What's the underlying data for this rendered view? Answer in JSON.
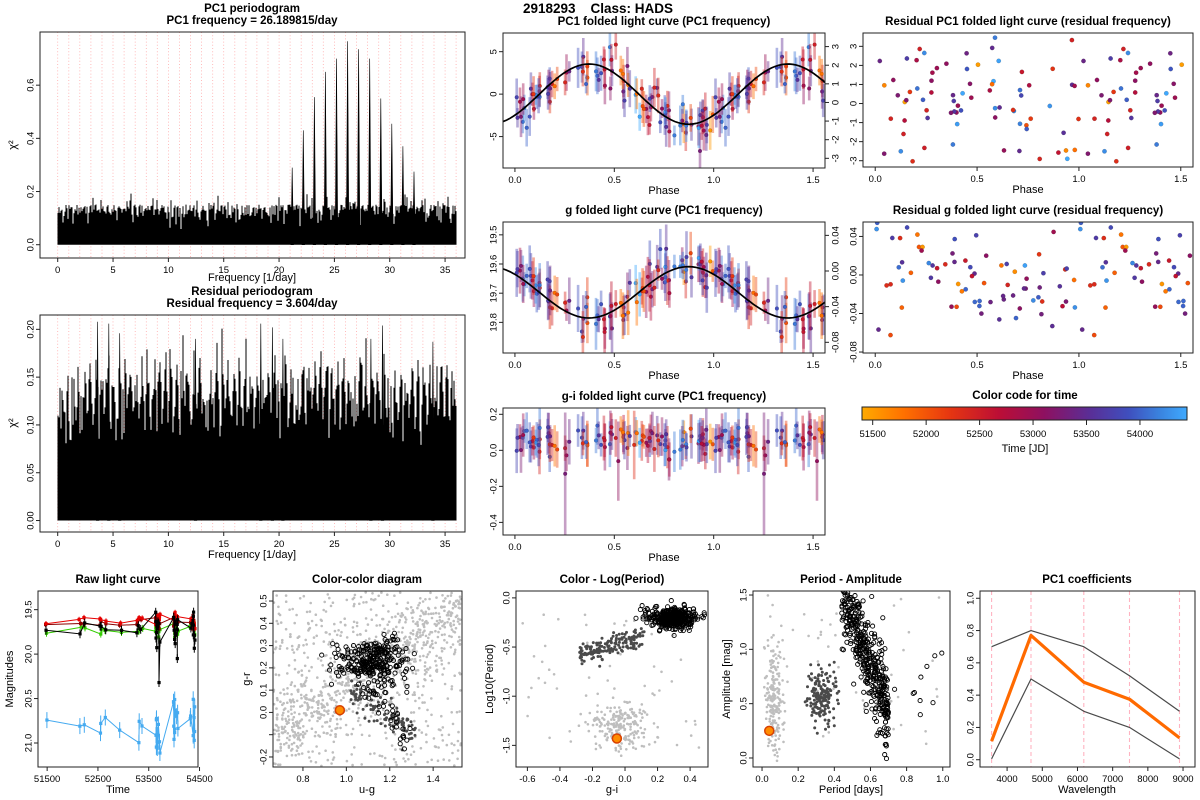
{
  "header": {
    "title": "2918293    Class: HADS"
  },
  "colors": {
    "background": "#FFFFFF",
    "periodogram_grid": "#FFAAAA",
    "coef_grid": "#FFB3C1",
    "fit_line": "#000000",
    "bg_marker": "#BEBEBE",
    "dark_marker": "#4A4A4A",
    "open_marker": "#000000",
    "highlight_fill": "#FF8C00",
    "highlight_stroke": "#D84000"
  },
  "chart_data": [
    {
      "type": "periodogram",
      "title": "PC1 periodogram",
      "subtitle": "PC1 frequency = 26.189815/day",
      "xlabel": "Frequency [1/day]",
      "ylabel": "χ²",
      "xlim": [
        -1.6,
        36.8
      ],
      "ylim": [
        -0.05,
        0.8
      ],
      "f_range": [
        0,
        36
      ],
      "grid_step": 1,
      "xticks": [
        0,
        5,
        10,
        15,
        20,
        25,
        30,
        35
      ],
      "xdec": 0,
      "yticks": [
        0.0,
        0.2,
        0.4,
        0.6
      ],
      "ydec": 1,
      "noise_base": 0.035,
      "noise_amp": 0.115,
      "noise_pow": 0.5,
      "spike_amp": 0.05,
      "peaks": [
        [
          21.19,
          0.29
        ],
        [
          22.19,
          0.43
        ],
        [
          23.19,
          0.555
        ],
        [
          24.19,
          0.65
        ],
        [
          25.19,
          0.7
        ],
        [
          26.19,
          0.765
        ],
        [
          27.19,
          0.735
        ],
        [
          28.19,
          0.7
        ],
        [
          29.19,
          0.55
        ],
        [
          30.19,
          0.455
        ],
        [
          31.19,
          0.37
        ],
        [
          32.19,
          0.275
        ]
      ]
    },
    {
      "type": "periodogram",
      "title": "Residual periodogram",
      "subtitle": "Residual frequency = 3.604/day",
      "xlabel": "Frequency [1/day]",
      "ylabel": "χ²",
      "xlim": [
        -1.6,
        36.8
      ],
      "ylim": [
        -0.012,
        0.215
      ],
      "f_range": [
        0,
        36
      ],
      "grid_step": 1,
      "xticks": [
        0,
        5,
        10,
        15,
        20,
        25,
        30,
        35
      ],
      "xdec": 0,
      "yticks": [
        0.0,
        0.05,
        0.1,
        0.15,
        0.2
      ],
      "ydec": 2,
      "noise_base": 0.04,
      "noise_amp": 0.125,
      "noise_pow": 0.35,
      "spike_amp": 0.045,
      "comb": 0.52,
      "peaks": [
        [
          3.604,
          0.208
        ],
        [
          4.62,
          0.206
        ],
        [
          5.6,
          0.196
        ],
        [
          12.45,
          0.19
        ],
        [
          18.35,
          0.206
        ],
        [
          19.4,
          0.202
        ],
        [
          20.35,
          0.19
        ],
        [
          28.3,
          0.19
        ],
        [
          29.35,
          0.204
        ],
        [
          33.9,
          0.187
        ]
      ]
    },
    {
      "type": "folded",
      "title": "PC1 folded light curve (PC1 frequency)",
      "xlabel": "Phase",
      "xlim": [
        -0.06,
        1.56
      ],
      "ylim": [
        -8.7,
        7.2
      ],
      "xticks": [
        0.0,
        0.5,
        1.0,
        1.5
      ],
      "xdec": 1,
      "yticks": [
        -5,
        0,
        5
      ],
      "ydec": 0,
      "right": {
        "lim": [
          -3.52,
          3.73
        ],
        "ticks": [
          -3,
          -2,
          -1,
          0,
          1,
          2,
          3
        ],
        "dec": 0
      },
      "fit": {
        "mean": 0,
        "amp": 3.55,
        "shift": 0.123
      },
      "n": 105,
      "sd": 1.25,
      "err": [
        1.1,
        1.3
      ]
    },
    {
      "type": "folded",
      "title": "g folded light curve (PC1 frequency)",
      "xlabel": "Phase",
      "xlim": [
        -0.06,
        1.56
      ],
      "ylim": [
        19.905,
        19.456
      ],
      "xticks": [
        0.0,
        0.5,
        1.0,
        1.5
      ],
      "xdec": 1,
      "yticks": [
        19.5,
        19.6,
        19.7,
        19.8
      ],
      "ydec": 1,
      "right": {
        "lim": [
          -0.092,
          0.055
        ],
        "ticks": [
          0.04,
          0.0,
          -0.04,
          -0.08
        ],
        "dec": 2
      },
      "fit": {
        "mean": 19.697,
        "amp": 0.088,
        "shift": 0.123
      },
      "n": 105,
      "sd": 0.035,
      "err": [
        0.035,
        0.055
      ]
    },
    {
      "type": "folded",
      "title": "g-i folded light curve (PC1 frequency)",
      "xlabel": "Phase",
      "xlim": [
        -0.06,
        1.56
      ],
      "ylim": [
        -0.47,
        0.235
      ],
      "xticks": [
        0.0,
        0.5,
        1.0,
        1.5
      ],
      "xdec": 1,
      "yticks": [
        -0.4,
        -0.2,
        0.0,
        0.2
      ],
      "ydec": 1,
      "fit": null,
      "mean": 0.05,
      "n": 105,
      "sd": 0.042,
      "err": [
        0.06,
        0.07
      ],
      "outliers": [
        [
          0.253,
          -0.13,
          0.34,
          0.62
        ],
        [
          0.52,
          -0.06,
          0.22,
          0.55
        ],
        [
          0.6,
          0.03,
          0.19,
          0.3
        ]
      ]
    },
    {
      "type": "residual",
      "title": "Residual PC1 folded light curve (residual frequency)",
      "xlabel": "Phase",
      "xlim": [
        -0.06,
        1.56
      ],
      "ylim": [
        -3.33,
        3.7
      ],
      "xticks": [
        0.0,
        0.5,
        1.0,
        1.5
      ],
      "xdec": 1,
      "yticks": [
        -3,
        -2,
        -1,
        0,
        1,
        2,
        3
      ],
      "ydec": 0,
      "n": 78,
      "sd": 1.45,
      "wave": 0.6
    },
    {
      "type": "residual",
      "title": "Residual g folded light curve (residual frequency)",
      "xlabel": "Phase",
      "xlim": [
        -0.06,
        1.56
      ],
      "ylim": [
        -0.081,
        0.055
      ],
      "xticks": [
        0.0,
        0.5,
        1.0,
        1.5
      ],
      "xdec": 1,
      "yticks": [
        0.04,
        0.0,
        -0.04,
        -0.08
      ],
      "ydec": 2,
      "n": 78,
      "sd": 0.03,
      "wave": 0.012
    },
    {
      "type": "colorbar",
      "title": "Color code for time",
      "xlabel": "Time [JD]",
      "lim": [
        51400,
        54440
      ],
      "ticks": [
        51500,
        52000,
        52500,
        53000,
        53500,
        54000
      ],
      "dec": 0,
      "stops": [
        [
          0,
          "#FFAA00"
        ],
        [
          0.13,
          "#FF7000"
        ],
        [
          0.27,
          "#E63611"
        ],
        [
          0.42,
          "#BC0E35"
        ],
        [
          0.56,
          "#8E1060"
        ],
        [
          0.7,
          "#5A2E96"
        ],
        [
          0.82,
          "#3F4FBE"
        ],
        [
          0.92,
          "#3A85E0"
        ],
        [
          1,
          "#3FAAFF"
        ]
      ]
    },
    {
      "type": "rawlc",
      "title": "Raw light curve",
      "xlabel": "Time",
      "ylabel": "Magnitudes",
      "xlim": [
        51320,
        54470
      ],
      "ylim": [
        21.27,
        19.29
      ],
      "xticks": [
        51500,
        52500,
        53500,
        54500
      ],
      "xdec": 0,
      "yticks": [
        19.5,
        20.0,
        20.5,
        21.0
      ],
      "ydec": 1,
      "epochs": [
        [
          51480,
          1
        ],
        [
          52150,
          1
        ],
        [
          52230,
          1
        ],
        [
          52560,
          2
        ],
        [
          52640,
          1
        ],
        [
          52950,
          1
        ],
        [
          53290,
          2
        ],
        [
          53360,
          1
        ],
        [
          53655,
          8
        ],
        [
          53700,
          4
        ],
        [
          54010,
          8
        ],
        [
          54060,
          3
        ],
        [
          54330,
          2
        ],
        [
          54390,
          7
        ]
      ],
      "bands": [
        {
          "name": "u",
          "color": "#45AAF0",
          "base": 20.78,
          "spread": 0.1,
          "dspread": 0.4,
          "err": 0.09
        },
        {
          "name": "z",
          "color": "#33CC00",
          "base": 19.72,
          "spread": 0.05,
          "dspread": 0.1,
          "err": 0.04
        },
        {
          "name": "i",
          "color": "#8B0000",
          "base": 19.65,
          "spread": 0.04,
          "dspread": 0.08,
          "err": 0.03
        },
        {
          "name": "r",
          "color": "#E60000",
          "base": 19.61,
          "spread": 0.04,
          "dspread": 0.09,
          "err": 0.03
        },
        {
          "name": "g",
          "color": "#000000",
          "base": 19.7,
          "spread": 0.07,
          "dspread": 0.22,
          "err": 0.05,
          "outliers": [
            [
              53700,
              20.32
            ],
            [
              54060,
              20.05
            ]
          ]
        }
      ]
    },
    {
      "type": "clusters",
      "title": "Color-color diagram",
      "xlabel": "u-g",
      "ylabel": "g-r",
      "xlim": [
        0.662,
        1.533
      ],
      "ylim": [
        -0.245,
        0.545
      ],
      "xticks": [
        0.8,
        1.0,
        1.2,
        1.4
      ],
      "xdec": 1,
      "yticks": [
        -0.2,
        -0.1,
        0.0,
        0.1,
        0.2,
        0.3,
        0.4,
        0.5
      ],
      "ydec": 1,
      "ylabels": [
        "-0.2",
        "",
        "0.0",
        "0.1",
        "0.2",
        "0.3",
        "0.4",
        "0.5"
      ],
      "highlight": [
        0.97,
        0.01
      ],
      "clusters": [
        {
          "style": "bg",
          "kind": "band",
          "n": 700,
          "x": [
            0.66,
            1.53
          ],
          "slope": 0.62,
          "x0": 0.72,
          "y0": -0.05,
          "sd": 0.1
        },
        {
          "style": "bg",
          "kind": "uniform",
          "n": 450,
          "x": [
            0.66,
            1.53
          ],
          "y": [
            -0.24,
            0.54
          ]
        },
        {
          "style": "dark",
          "kind": "band",
          "n": 110,
          "x": [
            1.02,
            1.32
          ],
          "slope": -0.6,
          "x0": 1.02,
          "y0": 0.09,
          "sd": 0.035
        },
        {
          "style": "open",
          "kind": "gauss",
          "n": 260,
          "cx": 1.12,
          "cy": 0.235,
          "sx": 0.075,
          "sy": 0.048
        },
        {
          "style": "open",
          "kind": "uniform",
          "n": 18,
          "x": [
            0.9,
            1.3
          ],
          "y": [
            0.05,
            0.33
          ]
        },
        {
          "style": "open",
          "kind": "band",
          "n": 40,
          "x": [
            1.1,
            1.3
          ],
          "slope": -1.2,
          "x0": 1.1,
          "y0": 0.12,
          "sd": 0.05
        }
      ]
    },
    {
      "type": "clusters",
      "title": "Color - Log(Period)",
      "xlabel": "g-i",
      "ylabel": "Log10(Period)",
      "xlim": [
        -0.67,
        0.51
      ],
      "ylim": [
        -1.72,
        0.07
      ],
      "xticks": [
        -0.6,
        -0.4,
        -0.2,
        0.0,
        0.2,
        0.4
      ],
      "xdec": 1,
      "yticks": [
        0.0,
        -0.5,
        -1.0,
        -1.5
      ],
      "ydec": 1,
      "highlight": [
        -0.05,
        -1.43
      ],
      "clusters": [
        {
          "style": "bg",
          "kind": "gauss",
          "n": 200,
          "cx": -0.03,
          "cy": -1.28,
          "sx": 0.09,
          "sy": 0.12
        },
        {
          "style": "bg",
          "kind": "uniform",
          "n": 60,
          "x": [
            -0.65,
            0.48
          ],
          "y": [
            -1.55,
            -0.15
          ]
        },
        {
          "style": "dark",
          "kind": "band",
          "n": 165,
          "x": [
            -0.28,
            0.12
          ],
          "slope": 0.5,
          "x0": -0.05,
          "y0": -0.47,
          "sd": 0.05
        },
        {
          "style": "open",
          "kind": "gauss",
          "n": 420,
          "cx": 0.3,
          "cy": -0.21,
          "sx": 0.062,
          "sy": 0.05
        },
        {
          "style": "open",
          "kind": "uniform",
          "n": 12,
          "x": [
            0.06,
            0.24
          ],
          "y": [
            -0.35,
            -0.06
          ]
        }
      ]
    },
    {
      "type": "clusters",
      "title": "Period - Amplitude",
      "xlabel": "Period [days]",
      "ylabel": "Amplitude [mag]",
      "xlim": [
        -0.05,
        1.04
      ],
      "ylim": [
        -0.083,
        1.537
      ],
      "xticks": [
        0.0,
        0.2,
        0.4,
        0.6,
        0.8,
        1.0
      ],
      "xdec": 1,
      "yticks": [
        0.0,
        0.5,
        1.0,
        1.5
      ],
      "ydec": 1,
      "highlight": [
        0.04,
        0.25
      ],
      "clusters": [
        {
          "style": "bg",
          "kind": "gauss",
          "n": 210,
          "cx": 0.065,
          "cy": 0.55,
          "sx": 0.025,
          "sy": 0.28
        },
        {
          "style": "bg",
          "kind": "uniform",
          "n": 55,
          "x": [
            0.0,
            1.0
          ],
          "y": [
            0.1,
            1.5
          ]
        },
        {
          "style": "dark",
          "kind": "gauss",
          "n": 165,
          "cx": 0.335,
          "cy": 0.56,
          "sx": 0.042,
          "sy": 0.12
        },
        {
          "style": "open",
          "kind": "band",
          "n": 430,
          "x": [
            0.44,
            0.7
          ],
          "slope": -4.2,
          "x0": 0.45,
          "y0": 1.5,
          "sd": 0.2
        },
        {
          "style": "open",
          "kind": "uniform",
          "n": 10,
          "x": [
            0.72,
            1.0
          ],
          "y": [
            0.35,
            1.45
          ]
        }
      ]
    },
    {
      "type": "lines",
      "title": "PC1 coefficients",
      "xlabel": "Wavelength",
      "xlim": [
        3230,
        9340
      ],
      "ylim": [
        -0.045,
        1.045
      ],
      "xticks": [
        4000,
        5000,
        6000,
        7000,
        8000,
        9000
      ],
      "xdec": 0,
      "yticks": [
        0.0,
        0.2,
        0.4,
        0.6,
        0.8,
        1.0
      ],
      "ydec": 1,
      "x": [
        3560,
        4680,
        6180,
        7480,
        8900
      ],
      "vlines": [
        3560,
        4680,
        6180,
        7480,
        8900
      ],
      "series": [
        {
          "name": "upper envelope",
          "color": "#4A4A4A",
          "width": 1.2,
          "values": [
            0.7,
            0.8,
            0.7,
            0.52,
            0.3
          ]
        },
        {
          "name": "lower envelope",
          "color": "#4A4A4A",
          "width": 1.2,
          "values": [
            0.005,
            0.5,
            0.3,
            0.2,
            0.005
          ]
        },
        {
          "name": "PC1",
          "color": "#FF6A00",
          "width": 3.2,
          "values": [
            0.115,
            0.77,
            0.48,
            0.375,
            0.135
          ]
        }
      ]
    }
  ]
}
